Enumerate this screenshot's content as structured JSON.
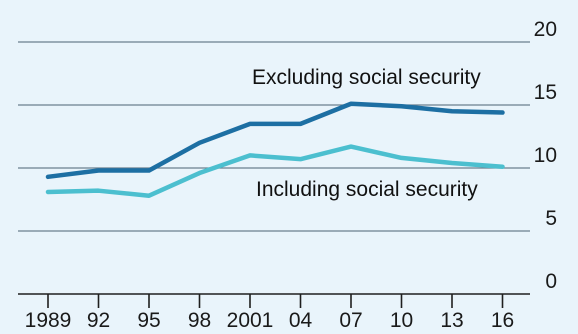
{
  "chart_data": {
    "type": "line",
    "categories": [
      "1989",
      "92",
      "95",
      "98",
      "2001",
      "04",
      "07",
      "10",
      "13",
      "16"
    ],
    "ylim": [
      0,
      20
    ],
    "yticks": [
      0,
      5,
      10,
      15,
      20
    ],
    "grid": true,
    "series": [
      {
        "name": "Excluding social security",
        "color": "#1d6fa3",
        "values": [
          9.3,
          9.8,
          9.8,
          12.0,
          13.5,
          13.5,
          15.1,
          14.9,
          14.5,
          14.4
        ]
      },
      {
        "name": "Including social security",
        "color": "#4cbfcf",
        "values": [
          8.1,
          8.2,
          7.8,
          9.6,
          11.0,
          10.7,
          11.7,
          10.8,
          10.4,
          10.1
        ]
      }
    ]
  }
}
